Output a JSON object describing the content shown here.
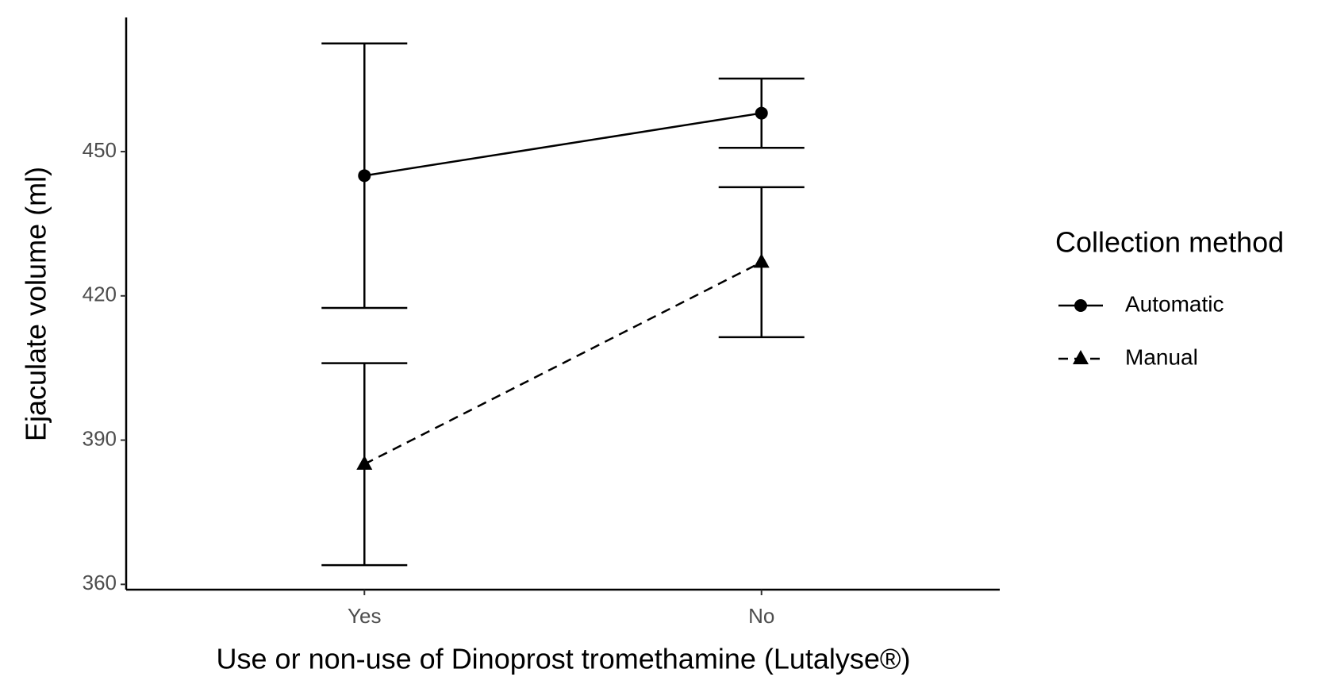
{
  "chart_data": {
    "type": "line",
    "x_label": "Use or non-use of Dinoprost tromethamine (Lutalyse®)",
    "y_label": "Ejaculate volume (ml)",
    "categories": [
      "Yes",
      "No"
    ],
    "series": [
      {
        "name": "Automatic",
        "color": "#000000",
        "linestyle": "solid",
        "marker": "circle",
        "values": [
          445,
          458
        ],
        "errors": [
          27.5,
          7.2
        ]
      },
      {
        "name": "Manual",
        "color": "#000000",
        "linestyle": "dashed",
        "marker": "triangle",
        "values": [
          385,
          427
        ],
        "errors": [
          21,
          15.6
        ]
      }
    ],
    "ylim": [
      358.9,
      477.9
    ],
    "yticks": [
      360,
      390,
      420,
      450
    ],
    "legend_title": "Collection method",
    "legend_position": "right",
    "grid": false
  }
}
